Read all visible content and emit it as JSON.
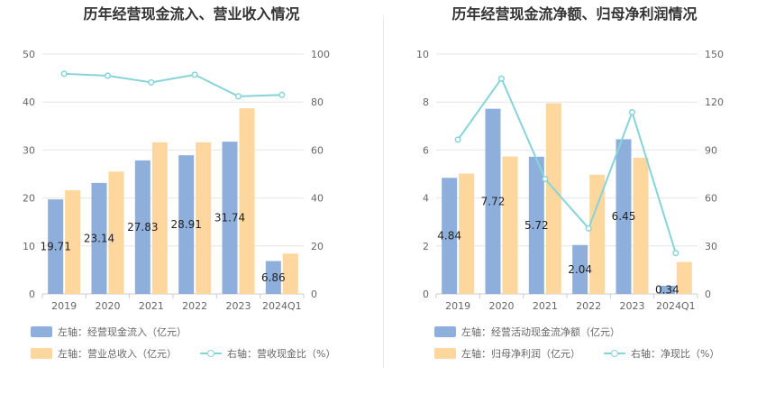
{
  "colors": {
    "bar1": "#8eafdc",
    "bar2": "#fed79e",
    "line": "#86d4d9",
    "grid": "#e6e6e6"
  },
  "chart_data": [
    {
      "type": "bar",
      "title": "历年经营现金流入、营业收入情况",
      "categories": [
        "2019",
        "2020",
        "2021",
        "2022",
        "2023",
        "2024Q1"
      ],
      "y_left_ticks": [
        "0",
        "10",
        "20",
        "30",
        "40",
        "50"
      ],
      "y_right_ticks": [
        "0",
        "20",
        "40",
        "60",
        "80",
        "100"
      ],
      "ylim_left": [
        0,
        50
      ],
      "ylim_right": [
        0,
        100
      ],
      "series": [
        {
          "name": "左轴：经营现金流入（亿元）",
          "axis": "left",
          "kind": "bar",
          "values": [
            19.71,
            23.14,
            27.83,
            28.91,
            31.74,
            6.86
          ],
          "labels": [
            "19.71",
            "23.14",
            "27.83",
            "28.91",
            "31.74",
            "6.86"
          ]
        },
        {
          "name": "左轴：营业总收入（亿元）",
          "axis": "left",
          "kind": "bar",
          "values": [
            21.6,
            25.5,
            31.6,
            31.6,
            38.7,
            8.4
          ]
        },
        {
          "name": "右轴：营收现金比（%）",
          "axis": "right",
          "kind": "line",
          "values": [
            91.8,
            91.0,
            88.2,
            91.4,
            82.4,
            83.0
          ]
        }
      ],
      "legend": {
        "bar1": "左轴：经营现金流入（亿元）",
        "bar2": "左轴：营业总收入（亿元）",
        "line": "右轴：营收现金比（%）"
      },
      "grid": true,
      "legend_position": "bottom"
    },
    {
      "type": "bar",
      "title": "历年经营现金流净额、归母净利润情况",
      "categories": [
        "2019",
        "2020",
        "2021",
        "2022",
        "2023",
        "2024Q1"
      ],
      "y_left_ticks": [
        "0",
        "2",
        "4",
        "6",
        "8",
        "10"
      ],
      "y_right_ticks": [
        "0",
        "30",
        "60",
        "90",
        "120",
        "150"
      ],
      "ylim_left": [
        0,
        10
      ],
      "ylim_right": [
        0,
        150
      ],
      "series": [
        {
          "name": "左轴：经营活动现金流净额（亿元）",
          "axis": "left",
          "kind": "bar",
          "values": [
            4.84,
            7.72,
            5.72,
            2.04,
            6.45,
            0.34
          ],
          "labels": [
            "4.84",
            "7.72",
            "5.72",
            "2.04",
            "6.45",
            "0.34"
          ]
        },
        {
          "name": "左轴：归母净利润（亿元）",
          "axis": "left",
          "kind": "bar",
          "values": [
            5.02,
            5.73,
            7.95,
            4.97,
            5.68,
            1.33
          ]
        },
        {
          "name": "右轴：净现比（%）",
          "axis": "right",
          "kind": "line",
          "values": [
            96.5,
            134.7,
            71.9,
            41.0,
            113.6,
            25.5
          ]
        }
      ],
      "legend": {
        "bar1": "左轴：经营活动现金流净额（亿元）",
        "bar2": "左轴：归母净利润（亿元）",
        "line": "右轴：净现比（%）"
      },
      "grid": true,
      "legend_position": "bottom"
    }
  ]
}
